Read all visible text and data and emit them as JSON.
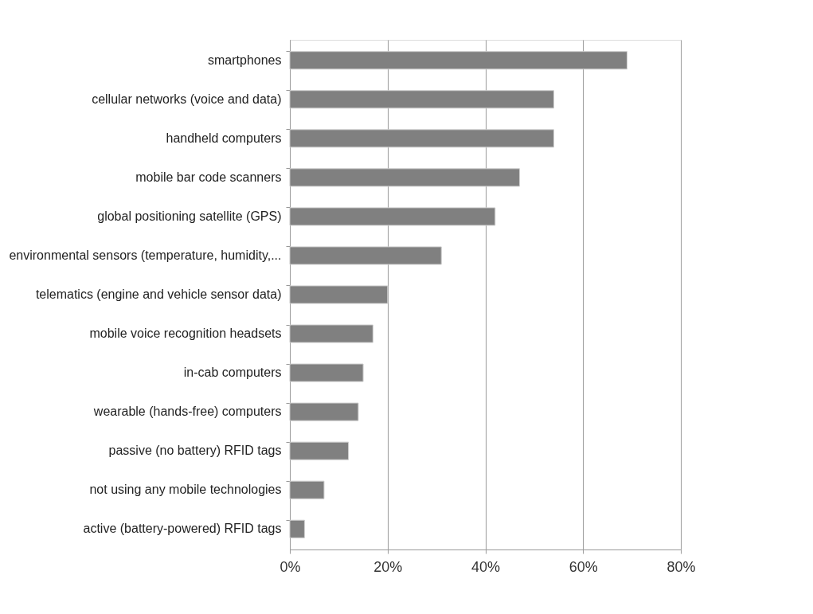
{
  "chart_data": {
    "type": "bar",
    "orientation": "horizontal",
    "categories": [
      "smartphones",
      "cellular networks (voice and data)",
      "handheld computers",
      "mobile bar code  scanners",
      "global positioning satellite (GPS)",
      "environmental sensors (temperature, humidity,...",
      "telematics (engine and vehicle sensor data)",
      "mobile voice recognition headsets",
      "in-cab computers",
      "wearable (hands-free) computers",
      "passive (no battery) RFID tags",
      "not using any mobile technologies",
      "active (battery-powered) RFID tags"
    ],
    "values": [
      69,
      54,
      54,
      47,
      42,
      31,
      20,
      17,
      15,
      14,
      12,
      7,
      3
    ],
    "color": "#808080",
    "xlim": [
      0,
      80
    ],
    "xticks": [
      {
        "value": 0,
        "label": "0%"
      },
      {
        "value": 20,
        "label": "20%"
      },
      {
        "value": 40,
        "label": "40%"
      },
      {
        "value": 60,
        "label": "60%"
      },
      {
        "value": 80,
        "label": "80%"
      }
    ],
    "grid": "x"
  }
}
